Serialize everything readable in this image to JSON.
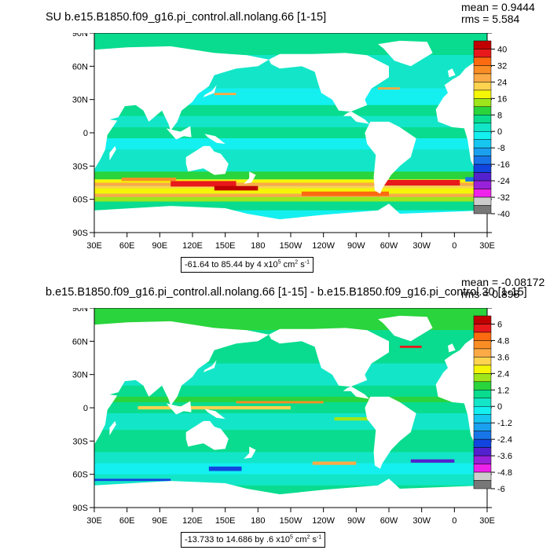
{
  "panels": [
    {
      "id": "top",
      "title": "SU b.e15.B1850.f09_g16.pi_control.all.nolang.66 [1-15]",
      "mean": "mean = 0.9444",
      "rms": "rms = 5.584",
      "range": {
        "text": "-61.64 to 85.44 by 4 x10",
        "exp": "5",
        "unit": " cm",
        "unit_exp": "2",
        "unit2": " s",
        "unit2_exp": "-1"
      },
      "colorbar_labels": [
        "40",
        "32",
        "24",
        "16",
        "8",
        "0",
        "-8",
        "-16",
        "-24",
        "-32",
        "-40"
      ]
    },
    {
      "id": "bottom",
      "title": "b.e15.B1850.f09_g16.pi_control.all.nolang.66 [1-15] - b.e15.B1850.f09_g16.pi_control.30 [1-15]",
      "mean": "mean = -0.08172",
      "rms": "rms = 0.898",
      "range": {
        "text": "-13.733 to 14.686 by .6 x10",
        "exp": "5",
        "unit": " cm",
        "unit_exp": "2",
        "unit2": " s",
        "unit2_exp": "-1"
      },
      "colorbar_labels": [
        "6",
        "4.8",
        "3.6",
        "2.4",
        "1.2",
        "0",
        "-1.2",
        "-2.4",
        "-3.6",
        "-4.8",
        "-6"
      ]
    }
  ],
  "lat_labels": [
    "90N",
    "60N",
    "30N",
    "0",
    "30S",
    "60S",
    "90S"
  ],
  "lon_labels": [
    "30E",
    "60E",
    "90E",
    "120E",
    "150E",
    "180",
    "150W",
    "120W",
    "90W",
    "60W",
    "30W",
    "0",
    "30E"
  ],
  "colors": {
    "palette": [
      "#c00000",
      "#e8191b",
      "#fd6a0f",
      "#fb8d25",
      "#fcaa45",
      "#ffd24f",
      "#f5f507",
      "#9ee61b",
      "#2ad43c",
      "#09dc8f",
      "#13e6c8",
      "#14f0f0",
      "#17c6f0",
      "#1aa0ef",
      "#1775e7",
      "#1245df",
      "#5421ce",
      "#9a21da",
      "#ee22ea",
      "#cccccc",
      "#787878"
    ],
    "land": "#ffffff",
    "ocean_base": "#14f0f0"
  }
}
